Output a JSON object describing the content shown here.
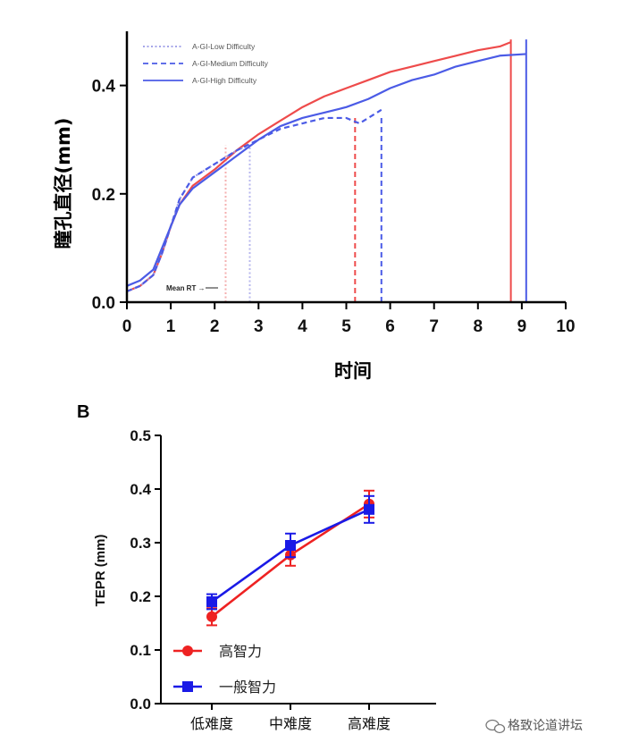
{
  "chart_data": [
    {
      "type": "line",
      "title": "",
      "xlabel": "时间",
      "ylabel": "瞳孔直径(mm)",
      "xlim": [
        0,
        10
      ],
      "ylim": [
        0,
        0.5
      ],
      "xticks": [
        "0",
        "1",
        "2",
        "3",
        "4",
        "5",
        "6",
        "7",
        "8",
        "9",
        "10"
      ],
      "yticks": [
        "0.0",
        "0.2",
        "0.4"
      ],
      "annotation": "Mean RT →",
      "legend_position": "top-left",
      "series": [
        {
          "name": "",
          "style": "solid",
          "color": "#ee4b4b",
          "end_x": 8.75,
          "x": [
            0,
            0.3,
            0.6,
            0.8,
            1.0,
            1.2,
            1.5,
            2.0,
            2.5,
            3.0,
            3.5,
            4.0,
            4.5,
            5.0,
            5.5,
            6.0,
            6.5,
            7.0,
            7.5,
            8.0,
            8.5,
            8.75
          ],
          "y": [
            0.02,
            0.03,
            0.05,
            0.09,
            0.14,
            0.18,
            0.215,
            0.245,
            0.28,
            0.31,
            0.335,
            0.36,
            0.38,
            0.395,
            0.41,
            0.425,
            0.435,
            0.445,
            0.455,
            0.465,
            0.472,
            0.48
          ]
        },
        {
          "name": "A-GI-Low Difficulty",
          "style": "dotted",
          "color": "#9a9ae6",
          "end_x": 2.8,
          "x": [
            0,
            0.3,
            0.6,
            0.8,
            1.0,
            1.2,
            1.5,
            2.0,
            2.5,
            2.8
          ],
          "y": [
            0.02,
            0.03,
            0.05,
            0.09,
            0.14,
            0.19,
            0.23,
            0.255,
            0.28,
            0.29
          ]
        },
        {
          "name": "A-GI-Medium Difficulty",
          "style": "dashed",
          "color": "#4b5be6",
          "end_x": 5.8,
          "x": [
            0,
            0.3,
            0.6,
            0.8,
            1.0,
            1.2,
            1.5,
            2.0,
            2.5,
            3.0,
            3.5,
            4.0,
            4.5,
            5.0,
            5.3,
            5.6,
            5.8
          ],
          "y": [
            0.02,
            0.03,
            0.05,
            0.09,
            0.14,
            0.19,
            0.23,
            0.255,
            0.28,
            0.3,
            0.32,
            0.33,
            0.34,
            0.34,
            0.33,
            0.345,
            0.355
          ]
        },
        {
          "name": "A-GI-High Difficulty",
          "style": "solid",
          "color": "#4b5be6",
          "end_x": 9.1,
          "x": [
            0,
            0.3,
            0.6,
            0.8,
            1.0,
            1.2,
            1.5,
            2.0,
            2.5,
            3.0,
            3.5,
            4.0,
            4.5,
            5.0,
            5.5,
            6.0,
            6.5,
            7.0,
            7.5,
            8.0,
            8.5,
            9.1
          ],
          "y": [
            0.03,
            0.04,
            0.06,
            0.1,
            0.14,
            0.18,
            0.21,
            0.24,
            0.27,
            0.3,
            0.325,
            0.34,
            0.35,
            0.36,
            0.375,
            0.395,
            0.41,
            0.42,
            0.435,
            0.445,
            0.455,
            0.458
          ]
        }
      ],
      "vlines": [
        {
          "x": 2.25,
          "style": "dotted",
          "color": "#f4b0b0"
        },
        {
          "x": 2.8,
          "style": "dotted",
          "color": "#b8b8ee"
        },
        {
          "x": 5.2,
          "style": "dashed",
          "color": "#ee4b4b"
        },
        {
          "x": 5.8,
          "style": "dashed",
          "color": "#4b5be6"
        },
        {
          "x": 8.75,
          "style": "solid",
          "color": "#ee4b4b"
        },
        {
          "x": 9.1,
          "style": "solid",
          "color": "#4b5be6"
        }
      ]
    },
    {
      "type": "line",
      "panel_label": "B",
      "title": "",
      "xlabel": "",
      "ylabel": "TEPR (mm)",
      "ylim": [
        0,
        0.5
      ],
      "yticks": [
        "0.0",
        "0.1",
        "0.2",
        "0.3",
        "0.4",
        "0.5"
      ],
      "categories": [
        "低难度",
        "中难度",
        "高难度"
      ],
      "legend_position": "bottom-left",
      "series": [
        {
          "name": "高智力",
          "color": "#ee2222",
          "marker": "circle",
          "values": [
            0.162,
            0.277,
            0.372
          ],
          "errors": [
            0.016,
            0.02,
            0.025
          ]
        },
        {
          "name": "一般智力",
          "color": "#1a1ae6",
          "marker": "square",
          "values": [
            0.19,
            0.295,
            0.362
          ],
          "errors": [
            0.014,
            0.022,
            0.025
          ]
        }
      ]
    }
  ],
  "watermark": "格致论道讲坛"
}
